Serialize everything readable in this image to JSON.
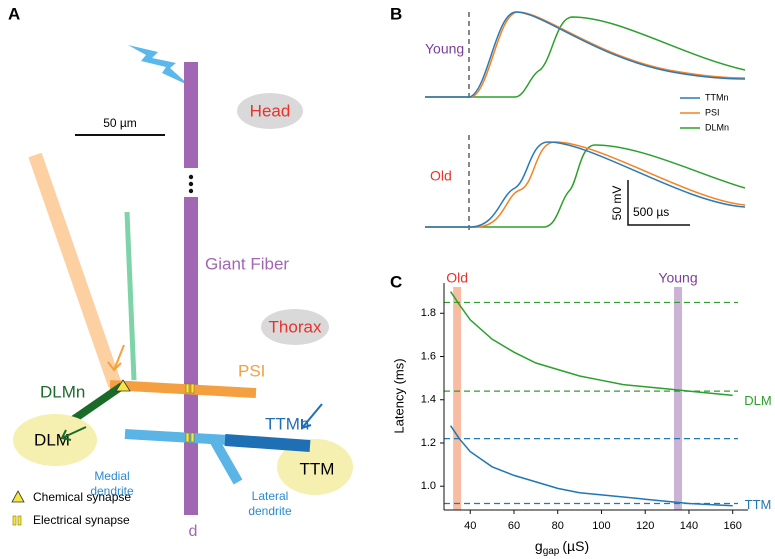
{
  "panel_a": {
    "label": "A",
    "scale_bar": "50 µm",
    "head": "Head",
    "giant_fiber": "Giant Fiber",
    "thorax": "Thorax",
    "psi": "PSI",
    "dlmn": "DLMn",
    "dlm": "DLM",
    "ttmn": "TTMn",
    "ttm": "TTM",
    "medial_dendrite": [
      "Medial",
      "dendrite"
    ],
    "lateral_dendrite": [
      "Lateral",
      "dendrite"
    ],
    "d": "d",
    "legend": [
      "Chemical synapse",
      "Electrical synapse"
    ]
  },
  "panel_b": {
    "label": "B",
    "conditions": [
      "Young",
      "Old"
    ],
    "legend": [
      "TTMn",
      "PSI",
      "DLMn"
    ],
    "scale_v": "50 mV",
    "scale_t": "500 µs"
  },
  "chart_data": {
    "type": "line",
    "panel_label": "C",
    "ylabel": "Latency (ms)",
    "xlabel": {
      "symbol": "g",
      "subscript": "gap",
      "unit": "(µS)"
    },
    "x": [
      31,
      35,
      40,
      50,
      60,
      70,
      80,
      90,
      100,
      110,
      120,
      130,
      140,
      150,
      160
    ],
    "series": [
      {
        "name": "DLM",
        "color": "#2ca02c",
        "values": [
          1.9,
          1.84,
          1.77,
          1.68,
          1.62,
          1.57,
          1.54,
          1.51,
          1.49,
          1.47,
          1.46,
          1.45,
          1.44,
          1.43,
          1.42
        ]
      },
      {
        "name": "TTM",
        "color": "#1f77b4",
        "values": [
          1.28,
          1.22,
          1.16,
          1.09,
          1.05,
          1.02,
          0.99,
          0.97,
          0.96,
          0.95,
          0.94,
          0.93,
          0.92,
          0.915,
          0.91
        ]
      }
    ],
    "reference_lines": [
      {
        "value": 1.85,
        "color": "#2ca02c"
      },
      {
        "value": 1.44,
        "color": "#2ca02c"
      },
      {
        "value": 1.22,
        "color": "#1f77b4"
      },
      {
        "value": 0.92,
        "color": "#1f77b4"
      }
    ],
    "bands": [
      {
        "label": "Old",
        "x": 34,
        "color": "#f4a582",
        "label_color": "#e8322a"
      },
      {
        "label": "Young",
        "x": 135,
        "color": "#b99ac8",
        "label_color": "#7b3f98"
      }
    ],
    "xlim": [
      28,
      167
    ],
    "ylim": [
      0.89,
      1.94
    ],
    "xticks": [
      40,
      60,
      80,
      100,
      120,
      140,
      160
    ],
    "yticks": [
      {
        "value": 1,
        "label": "1.0"
      },
      1.2,
      1.4,
      1.6,
      1.8
    ]
  }
}
